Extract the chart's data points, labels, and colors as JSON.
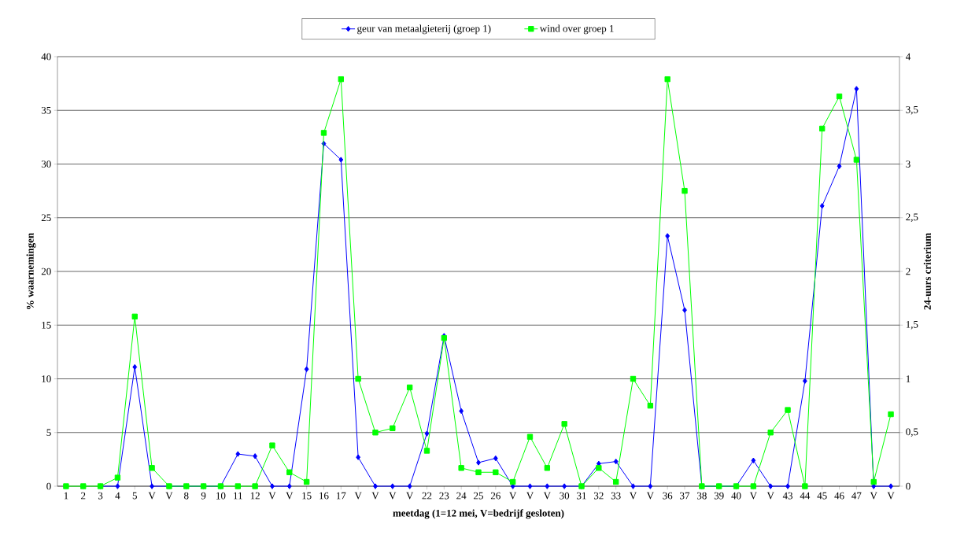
{
  "chart_data": {
    "type": "line",
    "xlabel": "meetdag (1=12 mei, V=bedrijf gesloten)",
    "ylabel": "% waarnemingen",
    "y2label": "24-uurs criterium",
    "categories": [
      "1",
      "2",
      "3",
      "4",
      "5",
      "V",
      "V",
      "8",
      "9",
      "10",
      "11",
      "12",
      "V",
      "V",
      "15",
      "16",
      "17",
      "V",
      "V",
      "V",
      "V",
      "22",
      "23",
      "24",
      "25",
      "26",
      "V",
      "V",
      "V",
      "30",
      "31",
      "32",
      "33",
      "V",
      "V",
      "36",
      "37",
      "38",
      "39",
      "40",
      "V",
      "V",
      "43",
      "44",
      "45",
      "46",
      "47",
      "V",
      "V"
    ],
    "ylim": [
      0,
      40
    ],
    "yticks": [
      0,
      5,
      10,
      15,
      20,
      25,
      30,
      35,
      40
    ],
    "y2lim": [
      0,
      4
    ],
    "y2ticks": [
      0,
      {
        "value": 0.5,
        "label": "0,5"
      },
      1,
      {
        "value": 1.5,
        "label": "1,5"
      },
      2,
      {
        "value": 2.5,
        "label": "2,5"
      },
      3,
      {
        "value": 3.5,
        "label": "3,5"
      },
      4
    ],
    "grid": "y",
    "legend": "top",
    "series": [
      {
        "name": "geur van metaalgieterij (groep 1)",
        "color": "#0000ff",
        "marker": "diamond",
        "values": [
          null,
          null,
          0,
          0,
          11.1,
          0,
          0,
          0,
          0,
          0,
          3.0,
          2.8,
          0,
          0,
          10.9,
          31.9,
          30.4,
          2.7,
          0,
          0,
          0,
          4.9,
          14.0,
          7.0,
          2.2,
          2.6,
          0,
          0,
          0,
          0,
          0,
          2.1,
          2.3,
          0,
          0,
          23.3,
          16.4,
          0,
          0,
          0,
          2.4,
          0,
          0,
          9.8,
          26.1,
          29.8,
          37.0,
          0,
          0
        ]
      },
      {
        "name": "wind over groep 1",
        "color": "#00ff00",
        "marker": "square",
        "axis": "y2",
        "values": [
          0,
          0,
          0,
          0.08,
          1.58,
          0.17,
          0,
          0,
          0,
          0,
          0,
          0,
          0.38,
          0.13,
          0.04,
          3.29,
          3.79,
          1.0,
          0.5,
          0.54,
          0.92,
          0.33,
          1.38,
          0.17,
          0.13,
          0.13,
          0.04,
          0.46,
          0.17,
          0.58,
          0,
          0.17,
          0.04,
          1.0,
          0.75,
          3.79,
          2.75,
          0,
          0,
          0,
          0,
          0.5,
          0.71,
          0,
          3.33,
          3.63,
          3.04,
          0.04,
          0.67
        ]
      }
    ]
  }
}
